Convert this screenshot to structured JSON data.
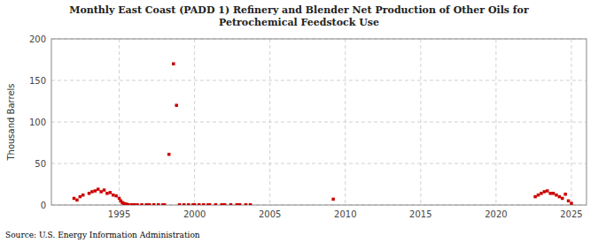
{
  "chart_data": {
    "type": "scatter",
    "title": "Monthly East Coast (PADD 1) Refinery and Blender Net Production of Other Oils for\nPetrochemical Feedstock Use",
    "y_label": "Thousand Barrels",
    "annotations": [
      "Source: U.S. Energy Information Administration"
    ],
    "color": "#cc0000",
    "marker": "square",
    "grid": true,
    "xlim": [
      1990.5,
      2026
    ],
    "ylim": [
      0,
      200
    ],
    "xticks": [
      1995,
      2000,
      2005,
      2010,
      2015,
      2020,
      2025
    ],
    "yticks": [
      0,
      50,
      100,
      150,
      200
    ],
    "x": [
      1992.0,
      1992.2,
      1992.4,
      1992.6,
      1993.0,
      1993.2,
      1993.4,
      1993.6,
      1993.8,
      1994.0,
      1994.2,
      1994.4,
      1994.6,
      1994.8,
      1995.0,
      1995.1,
      1995.2,
      1995.3,
      1995.4,
      1995.5,
      1995.6,
      1995.8,
      1996.0,
      1996.2,
      1996.5,
      1996.8,
      1997.0,
      1997.3,
      1997.6,
      1997.9,
      1998.0,
      1998.3,
      1998.6,
      1998.8,
      1999.0,
      1999.3,
      1999.6,
      1999.9,
      2000.0,
      2000.3,
      2000.6,
      2000.9,
      2001.0,
      2001.4,
      2001.8,
      2002.0,
      2002.4,
      2002.8,
      2003.0,
      2003.4,
      2003.7,
      2009.2,
      2022.6,
      2022.8,
      2023.0,
      2023.2,
      2023.4,
      2023.6,
      2023.8,
      2024.0,
      2024.2,
      2024.4,
      2024.6,
      2024.8,
      2025.0
    ],
    "values": [
      8,
      6,
      10,
      12,
      14,
      16,
      17,
      19,
      16,
      18,
      14,
      15,
      12,
      11,
      8,
      5,
      3,
      2,
      1,
      1,
      0.3,
      0.3,
      0.3,
      0.3,
      0.3,
      0.3,
      0.3,
      0.3,
      0.3,
      0.3,
      0.3,
      61,
      170,
      120,
      0.3,
      0.3,
      0.3,
      0.3,
      0.3,
      0.3,
      0.3,
      0.3,
      0.3,
      0.3,
      0.3,
      0.3,
      0.3,
      0.3,
      0.3,
      0.3,
      0.3,
      7,
      10,
      12,
      14,
      16,
      17,
      14,
      14,
      12,
      10,
      8,
      13,
      5,
      2
    ]
  }
}
